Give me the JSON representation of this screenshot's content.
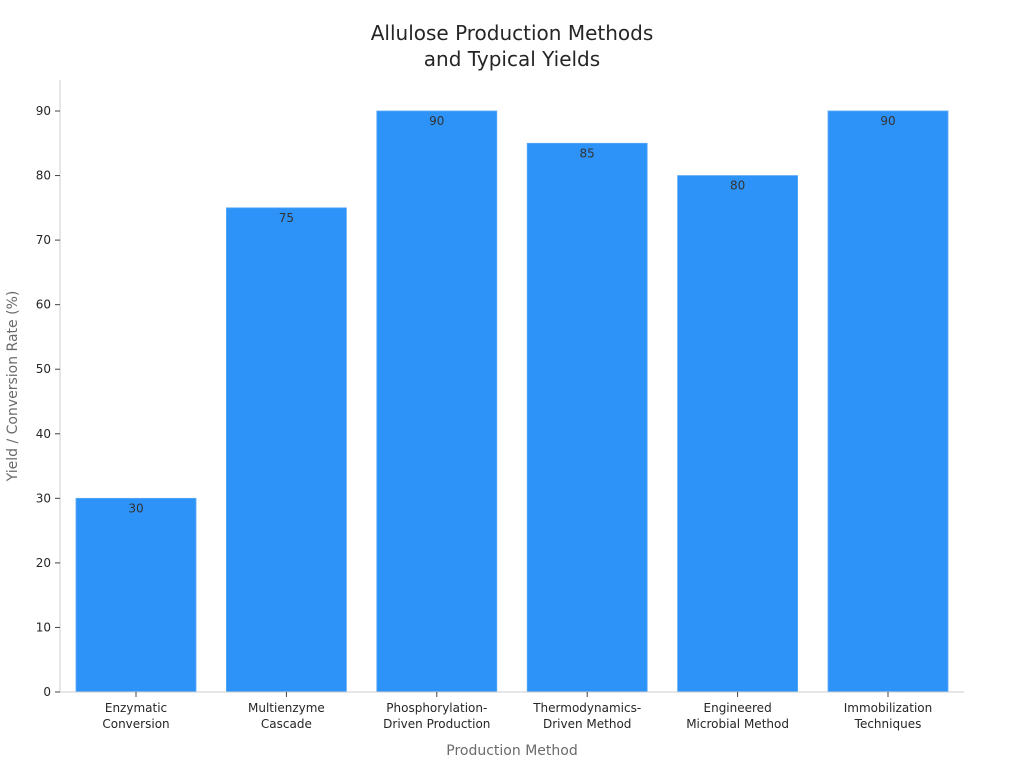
{
  "chart_data": {
    "type": "bar",
    "title_lines": [
      "Allulose Production Methods",
      "and Typical Yields"
    ],
    "xlabel": "Production Method",
    "ylabel": "Yield / Conversion Rate (%)",
    "categories": [
      [
        "Enzymatic",
        "Conversion"
      ],
      [
        "Multienzyme",
        "Cascade"
      ],
      [
        "Phosphorylation-",
        "Driven Production"
      ],
      [
        "Thermodynamics-",
        "Driven Method"
      ],
      [
        "Engineered",
        "Microbial Method"
      ],
      [
        "Immobilization",
        "Techniques"
      ]
    ],
    "values": [
      30,
      75,
      90,
      85,
      80,
      90
    ],
    "data_labels": [
      "30",
      "75",
      "90",
      "85",
      "80",
      "90"
    ],
    "yticks": [
      0,
      10,
      20,
      30,
      40,
      50,
      60,
      70,
      80,
      90
    ],
    "ylim": [
      0,
      95
    ],
    "grid": false,
    "legend": "none",
    "bar_color": "#2e93f8"
  }
}
